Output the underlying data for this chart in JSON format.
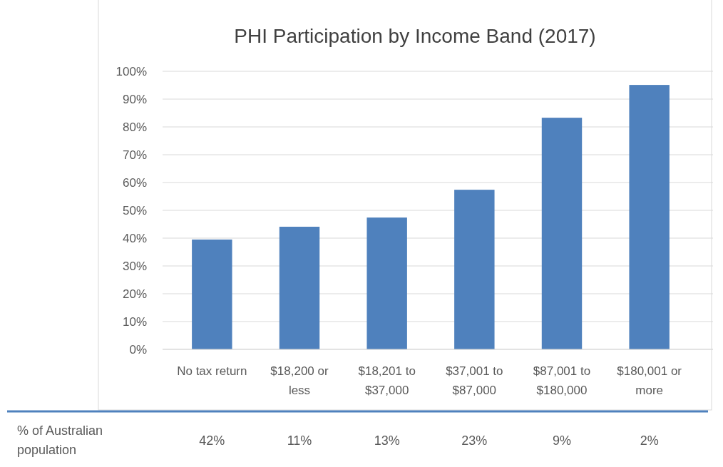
{
  "chart_data": {
    "type": "bar",
    "title": "PHI Participation by Income Band (2017)",
    "categories": [
      "No tax return",
      "$18,200 or less",
      "$18,201 to $37,000",
      "$37,001 to $87,000",
      "$87,001 to $180,000",
      "$180,001 or more"
    ],
    "values": [
      0.395,
      0.441,
      0.474,
      0.574,
      0.833,
      0.951
    ],
    "color": "#4f81bd",
    "ylim": [
      0,
      1
    ],
    "yticks": [
      {
        "value": 0,
        "label": "0%"
      },
      {
        "value": 0.1,
        "label": "10%"
      },
      {
        "value": 0.2,
        "label": "20%"
      },
      {
        "value": 0.3,
        "label": "30%"
      },
      {
        "value": 0.4,
        "label": "40%"
      },
      {
        "value": 0.5,
        "label": "50%"
      },
      {
        "value": 0.6,
        "label": "60%"
      },
      {
        "value": 0.7,
        "label": "70%"
      },
      {
        "value": 0.8,
        "label": "80%"
      },
      {
        "value": 0.9,
        "label": "90%"
      },
      {
        "value": 1,
        "label": "100%"
      }
    ],
    "grid": "y",
    "annotations": [
      "% of Australian population",
      "42%",
      "11%",
      "13%",
      "23%",
      "9%",
      "2%"
    ]
  }
}
